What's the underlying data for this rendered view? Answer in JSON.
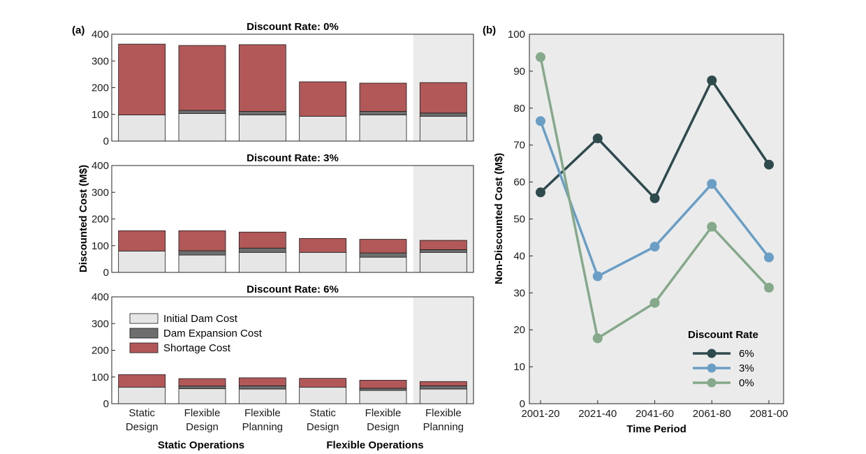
{
  "chart_data": [
    {
      "panel_label": "(a)",
      "type": "bar",
      "stacked": true,
      "ylabel": "Discounted Cost (M$)",
      "ylim": [
        0,
        400
      ],
      "yticks": [
        0,
        100,
        200,
        300,
        400
      ],
      "categories": [
        {
          "line1": "Static",
          "line2": "Design"
        },
        {
          "line1": "Flexible",
          "line2": "Design"
        },
        {
          "line1": "Flexible",
          "line2": "Planning"
        },
        {
          "line1": "Static",
          "line2": "Design"
        },
        {
          "line1": "Flexible",
          "line2": "Design"
        },
        {
          "line1": "Flexible",
          "line2": "Planning"
        }
      ],
      "groups": [
        "Static Operations",
        "Flexible Operations"
      ],
      "highlighted_category_index": 5,
      "legend": [
        {
          "name": "Initial Dam Cost",
          "color": "#e6e6e6"
        },
        {
          "name": "Dam Expansion Cost",
          "color": "#6e6e6e"
        },
        {
          "name": "Shortage Cost",
          "color": "#b35858"
        }
      ],
      "subplots": [
        {
          "title": "Discount Rate: 0%",
          "series": [
            {
              "name": "Initial Dam Cost",
              "values": [
                98,
                103,
                98,
                93,
                98,
                93
              ]
            },
            {
              "name": "Dam Expansion Cost",
              "values": [
                0,
                12,
                13,
                0,
                13,
                12
              ]
            },
            {
              "name": "Shortage Cost",
              "values": [
                265,
                243,
                250,
                129,
                106,
                114
              ]
            }
          ]
        },
        {
          "title": "Discount Rate: 3%",
          "series": [
            {
              "name": "Initial Dam Cost",
              "values": [
                80,
                65,
                75,
                75,
                57,
                75
              ]
            },
            {
              "name": "Dam Expansion Cost",
              "values": [
                0,
                16,
                16,
                0,
                16,
                10
              ]
            },
            {
              "name": "Shortage Cost",
              "values": [
                76,
                75,
                60,
                52,
                51,
                35
              ]
            }
          ]
        },
        {
          "title": "Discount Rate: 6%",
          "series": [
            {
              "name": "Initial Dam Cost",
              "values": [
                62,
                56,
                55,
                62,
                50,
                55
              ]
            },
            {
              "name": "Dam Expansion Cost",
              "values": [
                0,
                10,
                12,
                0,
                8,
                12
              ]
            },
            {
              "name": "Shortage Cost",
              "values": [
                47,
                28,
                30,
                33,
                30,
                16
              ]
            }
          ]
        }
      ]
    },
    {
      "panel_label": "(b)",
      "type": "line",
      "xlabel": "Time Period",
      "ylabel": "Non-Discounted Cost (M$)",
      "ylim": [
        0,
        100
      ],
      "yticks": [
        0,
        10,
        20,
        30,
        40,
        50,
        60,
        70,
        80,
        90,
        100
      ],
      "categories": [
        "2001-20",
        "2021-40",
        "2041-60",
        "2061-80",
        "2081-00"
      ],
      "legend_title": "Discount Rate",
      "legend_position": "bottom-right",
      "series": [
        {
          "name": "6%",
          "color": "#2f4a4d",
          "values": [
            57.2,
            71.8,
            55.6,
            87.5,
            64.7
          ]
        },
        {
          "name": "3%",
          "color": "#6a9ec4",
          "values": [
            76.5,
            34.5,
            42.5,
            59.5,
            39.6
          ]
        },
        {
          "name": "0%",
          "color": "#85a98a",
          "values": [
            93.8,
            17.7,
            27.3,
            47.9,
            31.4
          ]
        }
      ]
    }
  ]
}
